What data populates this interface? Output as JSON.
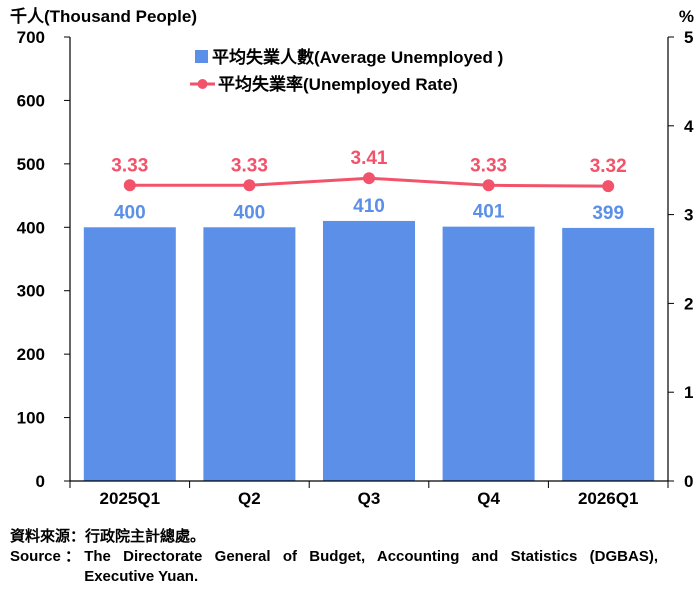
{
  "chart_data": {
    "type": "bar+line",
    "y_left_label": "千人(Thousand People)",
    "y_right_label": "%",
    "y_left_lim": [
      0,
      700
    ],
    "y_left_ticks": [
      "0",
      "100",
      "200",
      "300",
      "400",
      "500",
      "600",
      "700"
    ],
    "y_right_lim": [
      0,
      5
    ],
    "y_right_ticks": [
      "0",
      "1",
      "2",
      "3",
      "4",
      "5"
    ],
    "categories": [
      "2025Q1",
      "Q2",
      "Q3",
      "Q4",
      "2026Q1"
    ],
    "series": [
      {
        "name": "平均失業人數(Average Unemployed )",
        "type": "bar",
        "axis": "left",
        "values": [
          400,
          400,
          410,
          401,
          399
        ],
        "labels": [
          "400",
          "400",
          "410",
          "401",
          "399"
        ]
      },
      {
        "name": "平均失業率(Unemployed Rate)",
        "type": "line",
        "axis": "right",
        "values": [
          3.33,
          3.33,
          3.41,
          3.33,
          3.32
        ],
        "labels": [
          "3.33",
          "3.33",
          "3.41",
          "3.33",
          "3.32"
        ]
      }
    ],
    "gridlines": false,
    "legend_position": "top-center"
  },
  "colors": {
    "bar": "#5b8fe8",
    "bar_label": "#5b8fe8",
    "line": "#f2526a",
    "line_label": "#f2526a",
    "axis": "#000000"
  },
  "source": {
    "note": "資料來源：行政院主計總處。",
    "label": "Source ： ",
    "text": "The Directorate General of Budget, Accounting and Statistics (DGBAS), Executive Yuan."
  }
}
